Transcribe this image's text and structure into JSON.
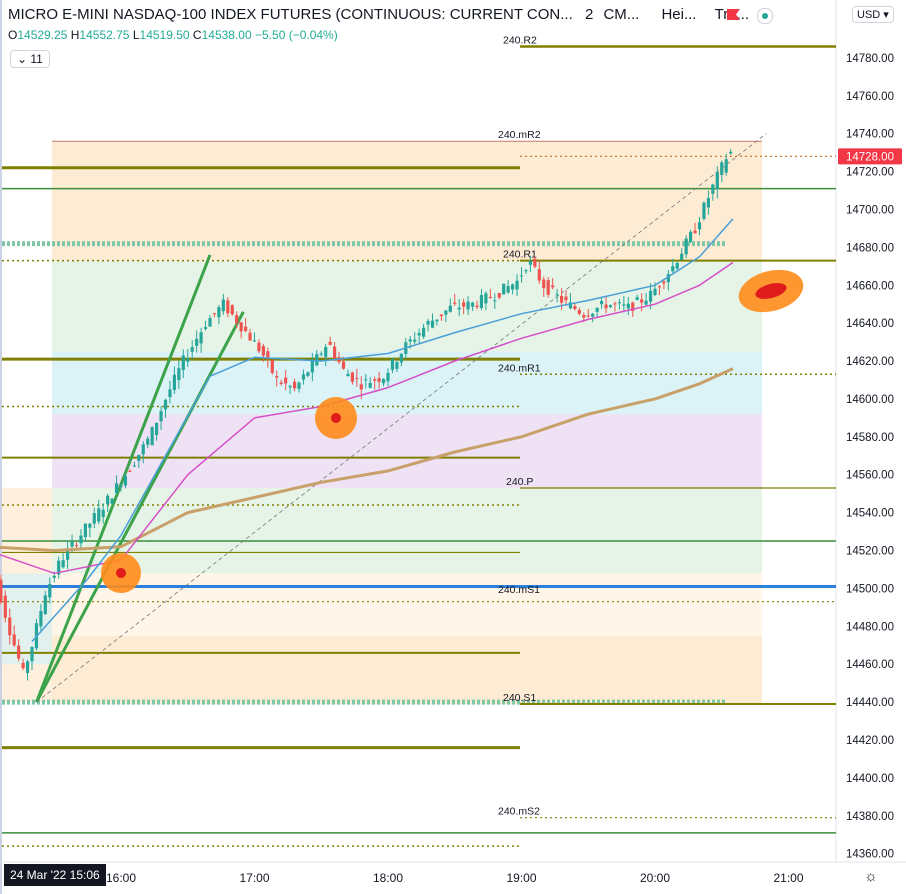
{
  "header": {
    "title": "MICRO E-MINI NASDAQ-100 INDEX FUTURES (CONTINUOUS: CURRENT CON...",
    "interval": "2",
    "exchange": "CM...",
    "chart_style": "Hei...",
    "trade": "Tra...",
    "currency": "USD"
  },
  "ohlc": {
    "o_label": "O",
    "o": "14529.25",
    "h_label": "H",
    "h": "14552.75",
    "l_label": "L",
    "l": "14519.50",
    "c_label": "C",
    "c": "14538.00",
    "chg": "−5.50 (−0.04%)"
  },
  "indicator_count": "11",
  "current_price_label": "14728.00",
  "crosshair_date": "24 Mar '22  15:06",
  "colors": {
    "up": "#26a69a",
    "down": "#ef5350",
    "bg": "#ffffff",
    "pivot_olive": "#808000",
    "pivot_green": "#388e3c",
    "ema_fast": "#4a9fd6",
    "ema_mid": "#d64fc8",
    "ema_slow": "#c9a06a",
    "blue_line": "#2e7fd9",
    "price_tag": "#f23645",
    "marker": "#ff8c1a"
  },
  "chart_data": {
    "type": "candlestick",
    "title": "",
    "xlabel": "",
    "ylabel": "",
    "grid": false,
    "y_range": [
      14355,
      14800
    ],
    "x_range": [
      "15:00",
      "21:30"
    ],
    "x_ticks": [
      "16:00",
      "17:00",
      "18:00",
      "19:00",
      "20:00",
      "21:00"
    ],
    "y_ticks": [
      14360,
      14380,
      14400,
      14420,
      14440,
      14460,
      14480,
      14500,
      14520,
      14540,
      14560,
      14580,
      14600,
      14620,
      14640,
      14660,
      14680,
      14700,
      14720,
      14740,
      14760,
      14780
    ],
    "pivot_labels": [
      {
        "name": "240.R2",
        "value": 14786
      },
      {
        "name": "240.mR2",
        "value": 14736
      },
      {
        "name": "240.R1",
        "value": 14673
      },
      {
        "name": "240.mR1",
        "value": 14613
      },
      {
        "name": "240.P",
        "value": 14553
      },
      {
        "name": "240.mS1",
        "value": 14496
      },
      {
        "name": "240.S1",
        "value": 14439
      },
      {
        "name": "240.mS2",
        "value": 14379
      }
    ],
    "current_price": 14728.0,
    "candle_anchors": [
      [
        "15:00",
        14530
      ],
      [
        "15:05",
        14508
      ],
      [
        "15:12",
        14478
      ],
      [
        "15:18",
        14455
      ],
      [
        "15:22",
        14470
      ],
      [
        "15:28",
        14498
      ],
      [
        "15:35",
        14515
      ],
      [
        "15:45",
        14530
      ],
      [
        "15:55",
        14545
      ],
      [
        "16:05",
        14562
      ],
      [
        "16:15",
        14580
      ],
      [
        "16:22",
        14600
      ],
      [
        "16:30",
        14620
      ],
      [
        "16:40",
        14640
      ],
      [
        "16:48",
        14650
      ],
      [
        "16:55",
        14640
      ],
      [
        "17:05",
        14625
      ],
      [
        "17:12",
        14610
      ],
      [
        "17:20",
        14605
      ],
      [
        "17:28",
        14618
      ],
      [
        "17:35",
        14630
      ],
      [
        "17:42",
        14615
      ],
      [
        "17:50",
        14608
      ],
      [
        "18:00",
        14612
      ],
      [
        "18:10",
        14628
      ],
      [
        "18:20",
        14640
      ],
      [
        "18:30",
        14648
      ],
      [
        "18:40",
        14650
      ],
      [
        "18:50",
        14655
      ],
      [
        "19:00",
        14662
      ],
      [
        "19:05",
        14673
      ],
      [
        "19:12",
        14660
      ],
      [
        "19:20",
        14652
      ],
      [
        "19:30",
        14645
      ],
      [
        "19:40",
        14650
      ],
      [
        "19:50",
        14648
      ],
      [
        "20:00",
        14655
      ],
      [
        "20:10",
        14670
      ],
      [
        "20:20",
        14690
      ],
      [
        "20:28",
        14712
      ],
      [
        "20:35",
        14730
      ]
    ],
    "ema_fast": [
      [
        "15:20",
        14472
      ],
      [
        "15:45",
        14505
      ],
      [
        "16:00",
        14528
      ],
      [
        "16:20",
        14570
      ],
      [
        "16:40",
        14612
      ],
      [
        "17:00",
        14622
      ],
      [
        "17:30",
        14620
      ],
      [
        "18:00",
        14624
      ],
      [
        "18:30",
        14635
      ],
      [
        "19:00",
        14645
      ],
      [
        "19:30",
        14652
      ],
      [
        "20:00",
        14660
      ],
      [
        "20:20",
        14675
      ],
      [
        "20:35",
        14695
      ]
    ],
    "ema_mid": [
      [
        "15:00",
        14520
      ],
      [
        "15:30",
        14508
      ],
      [
        "16:00",
        14515
      ],
      [
        "16:30",
        14560
      ],
      [
        "17:00",
        14590
      ],
      [
        "17:30",
        14596
      ],
      [
        "18:00",
        14606
      ],
      [
        "18:30",
        14620
      ],
      [
        "19:00",
        14632
      ],
      [
        "19:30",
        14642
      ],
      [
        "20:00",
        14650
      ],
      [
        "20:20",
        14660
      ],
      [
        "20:35",
        14672
      ]
    ],
    "ema_slow": [
      [
        "15:00",
        14522
      ],
      [
        "15:30",
        14520
      ],
      [
        "16:00",
        14522
      ],
      [
        "16:30",
        14540
      ],
      [
        "17:00",
        14548
      ],
      [
        "17:30",
        14556
      ],
      [
        "18:00",
        14562
      ],
      [
        "18:30",
        14572
      ],
      [
        "19:00",
        14580
      ],
      [
        "19:30",
        14592
      ],
      [
        "20:00",
        14600
      ],
      [
        "20:20",
        14608
      ],
      [
        "20:35",
        14616
      ]
    ]
  }
}
